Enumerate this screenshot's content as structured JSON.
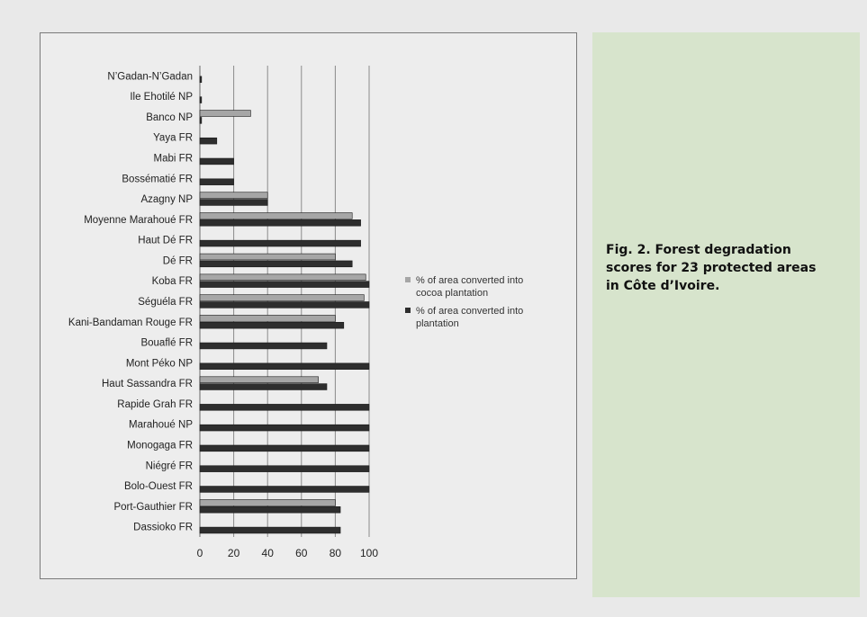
{
  "caption": "Fig. 2. Forest degradation\nscores for 23 protected areas\nin Côte d’Ivoire.",
  "chart_data": {
    "type": "bar",
    "orientation": "horizontal",
    "categories": [
      "N’Gadan-N’Gadan",
      "Ile Ehotilé NP",
      "Banco NP",
      "Yaya FR",
      "Mabi FR",
      "Bossématié FR",
      "Azagny NP",
      "Moyenne Marahoué FR",
      "Haut Dé FR",
      "Dé FR",
      "Koba FR",
      "Séguéla FR",
      "Kani-Bandaman Rouge FR",
      "Bouaflé FR",
      "Mont Péko NP",
      "Haut Sassandra FR",
      "Rapide Grah FR",
      "Marahoué NP",
      "Monogaga FR",
      "Niégré FR",
      "Bolo-Ouest FR",
      "Port-Gauthier FR",
      "Dassioko FR"
    ],
    "series": [
      {
        "name": "% of area converted into cocoa plantation",
        "color": "#a6a6a6",
        "values": [
          0,
          0,
          30,
          0,
          0,
          0,
          40,
          90,
          0,
          80,
          98,
          97,
          80,
          0,
          0,
          70,
          0,
          0,
          0,
          0,
          0,
          80,
          0
        ]
      },
      {
        "name": "% of area converted into plantation",
        "color": "#2e2e2e",
        "values": [
          1,
          1,
          1,
          10,
          20,
          20,
          40,
          95,
          95,
          90,
          100,
          100,
          85,
          75,
          100,
          75,
          100,
          100,
          100,
          100,
          100,
          83,
          83
        ]
      }
    ],
    "x_ticks": [
      "0",
      "20",
      "40",
      "60",
      "80",
      "100"
    ],
    "xlim": [
      0,
      100
    ],
    "grid": "vertical major gridlines",
    "legend_position": "right"
  }
}
